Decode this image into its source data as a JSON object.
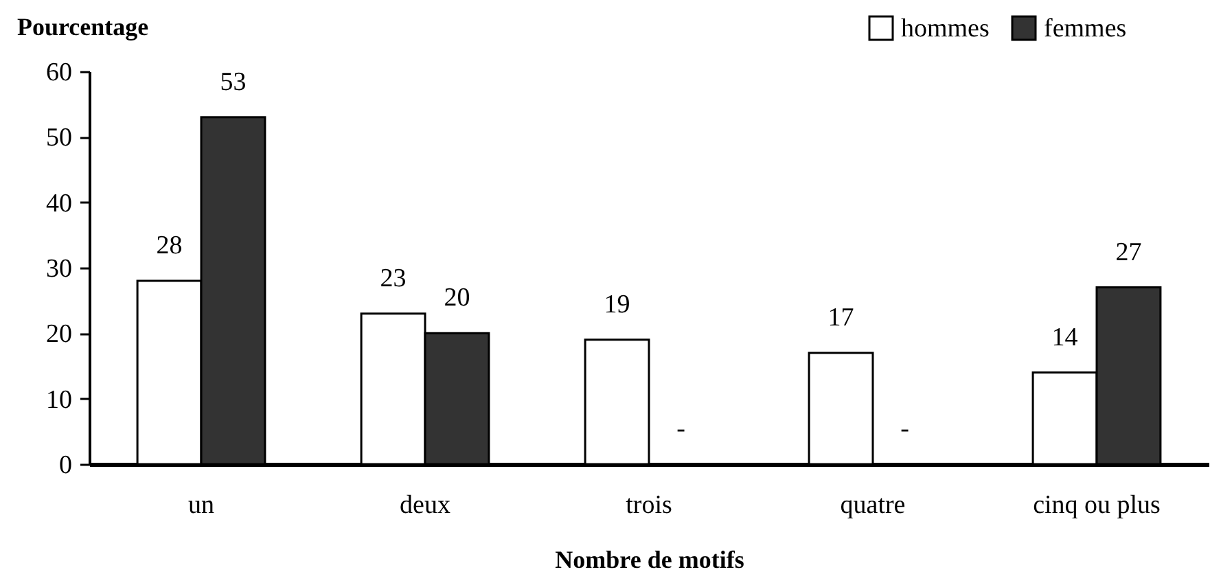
{
  "chart_data": {
    "type": "bar",
    "xlabel": "Nombre de motifs",
    "ylabel": "Pourcentage",
    "categories": [
      "un",
      "deux",
      "trois",
      "quatre",
      "cinq ou plus"
    ],
    "series": [
      {
        "name": "hommes",
        "color": "#ffffff",
        "values": [
          28,
          23,
          19,
          17,
          14
        ],
        "value_labels": [
          "28",
          "23",
          "19",
          "17",
          "14"
        ]
      },
      {
        "name": "femmes",
        "color": "#333333",
        "values": [
          53,
          20,
          null,
          null,
          27
        ],
        "value_labels": [
          "53",
          "20",
          "-",
          "-",
          "27"
        ]
      }
    ],
    "ylim": [
      0,
      60
    ],
    "yticks": [
      0,
      10,
      20,
      30,
      40,
      50,
      60
    ],
    "legend": "top right"
  }
}
